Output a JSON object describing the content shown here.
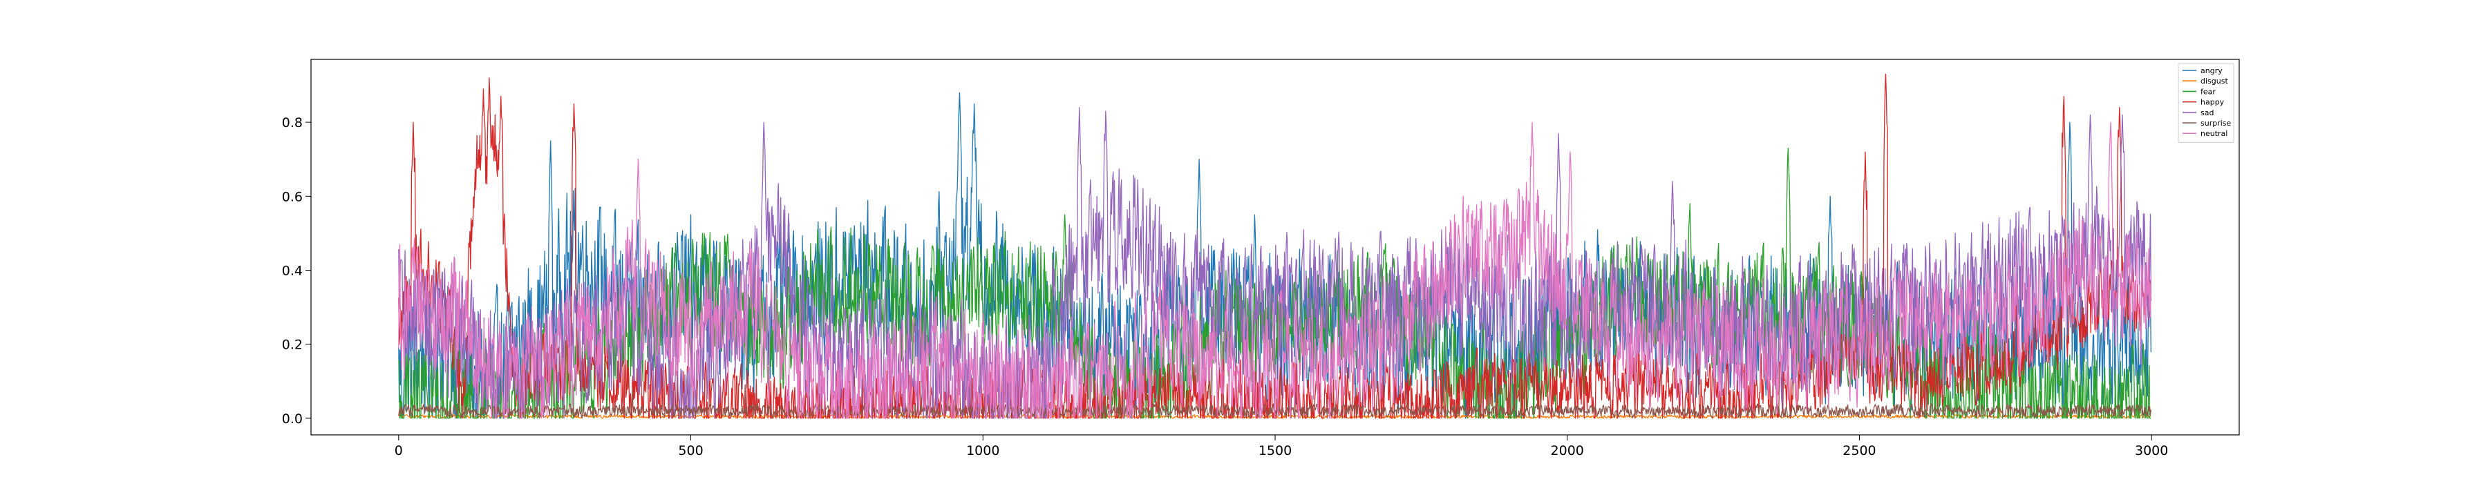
{
  "chart_data": {
    "type": "line",
    "title": "",
    "xlabel": "",
    "ylabel": "",
    "xlim": [
      -150,
      3150
    ],
    "ylim": [
      -0.045,
      0.97
    ],
    "xticks": [
      0,
      500,
      1000,
      1500,
      2000,
      2500,
      3000
    ],
    "xtick_labels": [
      "0",
      "500",
      "1000",
      "1500",
      "2000",
      "2500",
      "3000"
    ],
    "yticks": [
      0.0,
      0.2,
      0.4,
      0.6,
      0.8
    ],
    "ytick_labels": [
      "0.0",
      "0.2",
      "0.4",
      "0.6",
      "0.8"
    ],
    "grid": false,
    "legend_position": "top-right",
    "n_points": 3000,
    "series": [
      {
        "name": "angry",
        "color": "#1f77b4",
        "keypoints": [
          [
            0,
            0.12
          ],
          [
            60,
            0.2
          ],
          [
            150,
            0.1
          ],
          [
            260,
            0.3
          ],
          [
            300,
            0.45
          ],
          [
            400,
            0.3
          ],
          [
            500,
            0.35
          ],
          [
            600,
            0.25
          ],
          [
            700,
            0.35
          ],
          [
            800,
            0.4
          ],
          [
            900,
            0.3
          ],
          [
            960,
            0.5
          ],
          [
            1000,
            0.4
          ],
          [
            1100,
            0.3
          ],
          [
            1200,
            0.2
          ],
          [
            1300,
            0.25
          ],
          [
            1400,
            0.3
          ],
          [
            1500,
            0.25
          ],
          [
            1600,
            0.25
          ],
          [
            1700,
            0.2
          ],
          [
            1800,
            0.2
          ],
          [
            1900,
            0.15
          ],
          [
            2000,
            0.3
          ],
          [
            2100,
            0.3
          ],
          [
            2200,
            0.25
          ],
          [
            2300,
            0.25
          ],
          [
            2400,
            0.25
          ],
          [
            2500,
            0.25
          ],
          [
            2600,
            0.2
          ],
          [
            2700,
            0.2
          ],
          [
            2800,
            0.25
          ],
          [
            2900,
            0.2
          ],
          [
            3000,
            0.2
          ]
        ],
        "noise": 0.17,
        "peaks": [
          [
            260,
            0.75
          ],
          [
            960,
            0.88
          ],
          [
            985,
            0.85
          ],
          [
            1370,
            0.7
          ],
          [
            1465,
            0.55
          ],
          [
            2450,
            0.6
          ],
          [
            2860,
            0.8
          ]
        ]
      },
      {
        "name": "disgust",
        "color": "#ff7f0e",
        "keypoints": [
          [
            0,
            0.005
          ],
          [
            1500,
            0.004
          ],
          [
            3000,
            0.005
          ]
        ],
        "noise": 0.004,
        "peaks": [
          [
            2740,
            0.04
          ]
        ]
      },
      {
        "name": "fear",
        "color": "#2ca02c",
        "keypoints": [
          [
            0,
            0.05
          ],
          [
            200,
            0.05
          ],
          [
            300,
            0.1
          ],
          [
            450,
            0.3
          ],
          [
            550,
            0.35
          ],
          [
            650,
            0.2
          ],
          [
            700,
            0.35
          ],
          [
            800,
            0.35
          ],
          [
            900,
            0.3
          ],
          [
            1000,
            0.35
          ],
          [
            1100,
            0.35
          ],
          [
            1150,
            0.3
          ],
          [
            1200,
            0.05
          ],
          [
            1300,
            0.08
          ],
          [
            1400,
            0.25
          ],
          [
            1500,
            0.25
          ],
          [
            1600,
            0.3
          ],
          [
            1700,
            0.3
          ],
          [
            1800,
            0.15
          ],
          [
            1900,
            0.05
          ],
          [
            2000,
            0.2
          ],
          [
            2100,
            0.35
          ],
          [
            2200,
            0.3
          ],
          [
            2300,
            0.3
          ],
          [
            2400,
            0.3
          ],
          [
            2500,
            0.25
          ],
          [
            2600,
            0.1
          ],
          [
            2700,
            0.1
          ],
          [
            2800,
            0.05
          ],
          [
            3000,
            0.05
          ]
        ],
        "noise": 0.14,
        "peaks": [
          [
            1140,
            0.55
          ],
          [
            2378,
            0.73
          ],
          [
            2210,
            0.58
          ]
        ]
      },
      {
        "name": "happy",
        "color": "#d62728",
        "keypoints": [
          [
            0,
            0.25
          ],
          [
            30,
            0.45
          ],
          [
            80,
            0.3
          ],
          [
            110,
            0.05
          ],
          [
            130,
            0.7
          ],
          [
            170,
            0.75
          ],
          [
            200,
            0.1
          ],
          [
            300,
            0.15
          ],
          [
            400,
            0.08
          ],
          [
            500,
            0.05
          ],
          [
            700,
            0.03
          ],
          [
            900,
            0.05
          ],
          [
            1100,
            0.03
          ],
          [
            1300,
            0.05
          ],
          [
            1500,
            0.05
          ],
          [
            1700,
            0.04
          ],
          [
            1800,
            0.06
          ],
          [
            1900,
            0.08
          ],
          [
            2100,
            0.08
          ],
          [
            2300,
            0.05
          ],
          [
            2500,
            0.15
          ],
          [
            2600,
            0.1
          ],
          [
            2800,
            0.2
          ],
          [
            2950,
            0.35
          ],
          [
            3000,
            0.3
          ]
        ],
        "noise": 0.09,
        "peaks": [
          [
            25,
            0.8
          ],
          [
            145,
            0.89
          ],
          [
            155,
            0.92
          ],
          [
            175,
            0.87
          ],
          [
            300,
            0.85
          ],
          [
            2545,
            0.93
          ],
          [
            2510,
            0.72
          ],
          [
            2850,
            0.87
          ],
          [
            2945,
            0.84
          ]
        ]
      },
      {
        "name": "sad",
        "color": "#9467bd",
        "keypoints": [
          [
            0,
            0.3
          ],
          [
            100,
            0.25
          ],
          [
            200,
            0.1
          ],
          [
            300,
            0.2
          ],
          [
            400,
            0.25
          ],
          [
            500,
            0.1
          ],
          [
            600,
            0.35
          ],
          [
            650,
            0.5
          ],
          [
            700,
            0.2
          ],
          [
            800,
            0.15
          ],
          [
            900,
            0.15
          ],
          [
            1000,
            0.1
          ],
          [
            1100,
            0.1
          ],
          [
            1150,
            0.4
          ],
          [
            1250,
            0.5
          ],
          [
            1350,
            0.3
          ],
          [
            1400,
            0.3
          ],
          [
            1500,
            0.3
          ],
          [
            1600,
            0.3
          ],
          [
            1700,
            0.3
          ],
          [
            1800,
            0.35
          ],
          [
            1900,
            0.3
          ],
          [
            2000,
            0.25
          ],
          [
            2100,
            0.3
          ],
          [
            2200,
            0.3
          ],
          [
            2300,
            0.25
          ],
          [
            2400,
            0.25
          ],
          [
            2500,
            0.3
          ],
          [
            2600,
            0.3
          ],
          [
            2700,
            0.35
          ],
          [
            2800,
            0.4
          ],
          [
            2900,
            0.45
          ],
          [
            3000,
            0.4
          ]
        ],
        "noise": 0.16,
        "peaks": [
          [
            625,
            0.8
          ],
          [
            1165,
            0.84
          ],
          [
            1210,
            0.83
          ],
          [
            1985,
            0.77
          ],
          [
            2180,
            0.64
          ],
          [
            2895,
            0.82
          ],
          [
            2950,
            0.82
          ]
        ]
      },
      {
        "name": "surprise",
        "color": "#8c564b",
        "keypoints": [
          [
            0,
            0.02
          ],
          [
            1500,
            0.02
          ],
          [
            3000,
            0.02
          ]
        ],
        "noise": 0.015,
        "peaks": [
          [
            400,
            0.08
          ],
          [
            1900,
            0.1
          ]
        ]
      },
      {
        "name": "neutral",
        "color": "#e377c2",
        "keypoints": [
          [
            0,
            0.3
          ],
          [
            100,
            0.25
          ],
          [
            200,
            0.1
          ],
          [
            300,
            0.2
          ],
          [
            400,
            0.35
          ],
          [
            500,
            0.2
          ],
          [
            600,
            0.3
          ],
          [
            700,
            0.1
          ],
          [
            800,
            0.1
          ],
          [
            900,
            0.15
          ],
          [
            1000,
            0.1
          ],
          [
            1100,
            0.1
          ],
          [
            1200,
            0.1
          ],
          [
            1300,
            0.2
          ],
          [
            1400,
            0.15
          ],
          [
            1500,
            0.15
          ],
          [
            1600,
            0.15
          ],
          [
            1700,
            0.2
          ],
          [
            1800,
            0.4
          ],
          [
            1900,
            0.45
          ],
          [
            1950,
            0.5
          ],
          [
            2000,
            0.35
          ],
          [
            2100,
            0.2
          ],
          [
            2200,
            0.2
          ],
          [
            2300,
            0.2
          ],
          [
            2400,
            0.2
          ],
          [
            2500,
            0.2
          ],
          [
            2600,
            0.25
          ],
          [
            2700,
            0.25
          ],
          [
            2800,
            0.3
          ],
          [
            2900,
            0.4
          ],
          [
            3000,
            0.3
          ]
        ],
        "noise": 0.15,
        "peaks": [
          [
            410,
            0.7
          ],
          [
            1940,
            0.8
          ],
          [
            2005,
            0.72
          ],
          [
            2930,
            0.8
          ]
        ]
      }
    ]
  }
}
